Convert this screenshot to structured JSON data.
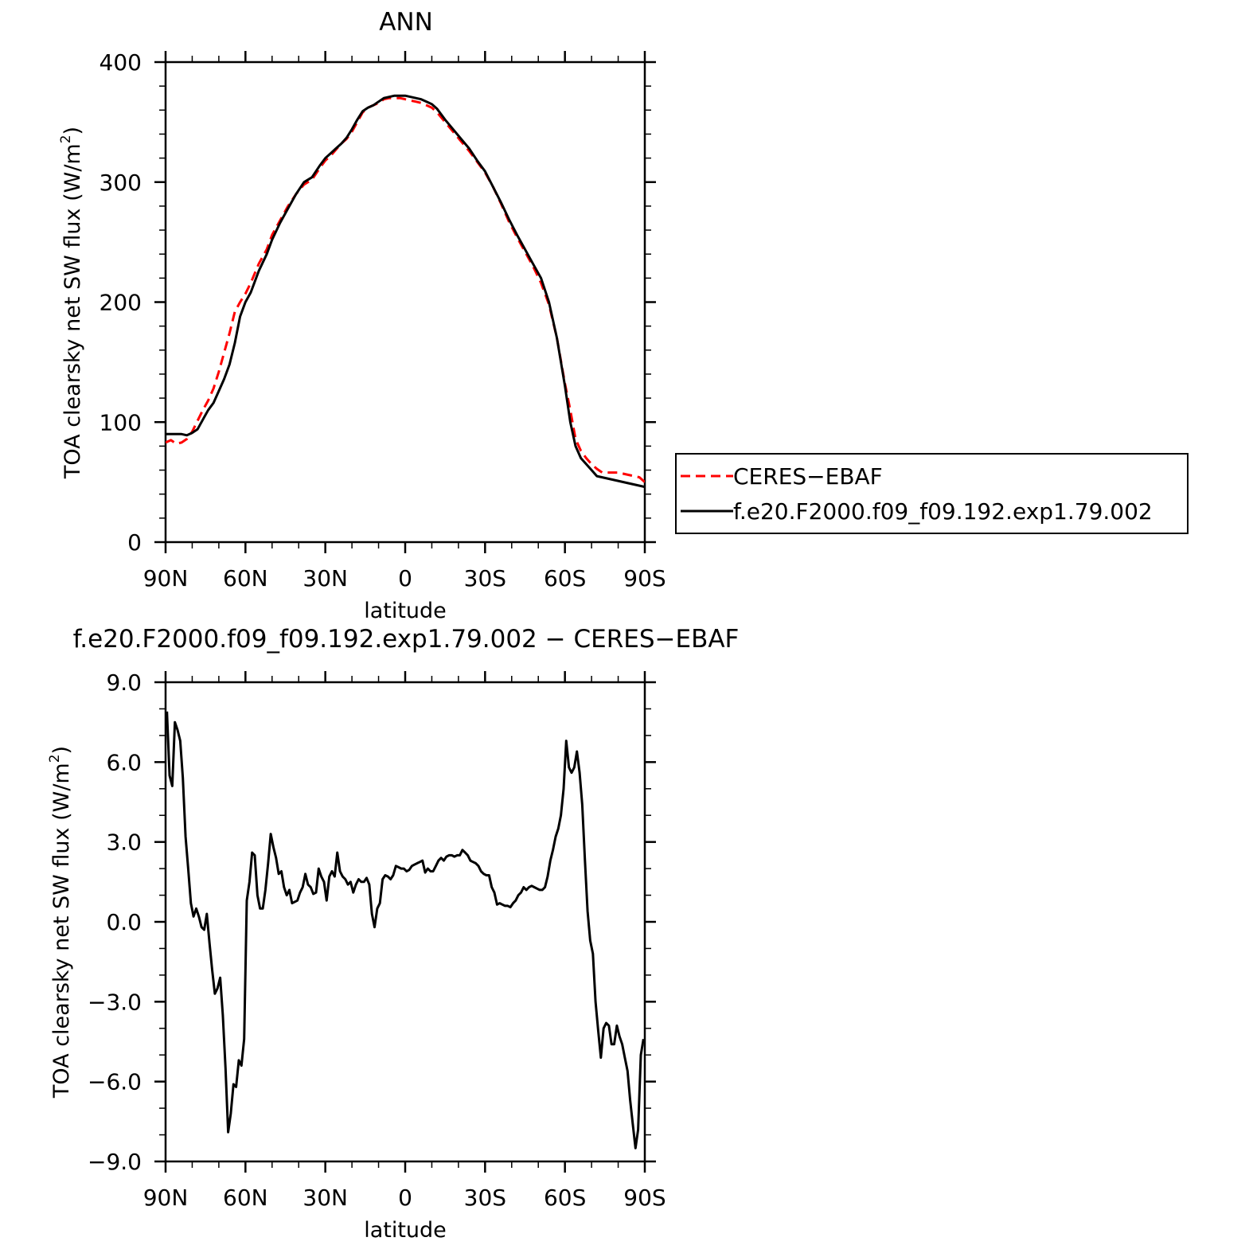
{
  "chart_data": [
    {
      "type": "line",
      "title": "ANN",
      "xlabel": "latitude",
      "ylabel": "TOA clearsky net SW flux (W/m²)",
      "ylabel_main": "TOA clearsky net SW flux (W/m",
      "ylabel_sup": "2",
      "ylabel_end": ")",
      "xlim": [
        90,
        -90
      ],
      "ylim": [
        0,
        400
      ],
      "x_ticks": [
        90,
        60,
        30,
        0,
        -30,
        -60,
        -90
      ],
      "x_tick_labels": [
        "90N",
        "60N",
        "30N",
        "0",
        "30S",
        "60S",
        "90S"
      ],
      "y_ticks": [
        0,
        100,
        200,
        300,
        400
      ],
      "y_tick_labels": [
        "0",
        "100",
        "200",
        "300",
        "400"
      ],
      "legend_position": "right of plot",
      "series": [
        {
          "name": "CERES-EBAF",
          "color": "#ff0000",
          "dash": "dashed",
          "x": [
            90,
            88,
            86,
            84,
            82,
            80,
            78,
            76,
            74,
            72,
            70,
            68,
            66,
            64,
            62,
            60,
            58,
            55,
            52,
            50,
            47,
            44,
            41,
            38,
            35,
            32,
            30,
            28,
            26,
            24,
            22,
            20,
            18,
            16,
            14,
            12,
            10,
            8,
            6,
            4,
            2,
            0,
            -2,
            -4,
            -6,
            -8,
            -10,
            -12,
            -15,
            -18,
            -21,
            -24,
            -27,
            -30,
            -33,
            -36,
            -39,
            -42,
            -45,
            -48,
            -51,
            -54,
            -57,
            -60,
            -62,
            -64,
            -66,
            -68,
            -70,
            -72,
            -74,
            -76,
            -78,
            -80,
            -82,
            -84,
            -86,
            -88,
            -90
          ],
          "y": [
            83,
            85,
            82,
            83,
            86,
            92,
            101,
            110,
            118,
            128,
            142,
            158,
            174,
            192,
            200,
            207,
            216,
            232,
            244,
            256,
            268,
            280,
            290,
            298,
            302,
            312,
            318,
            322,
            327,
            332,
            336,
            342,
            350,
            358,
            362,
            364,
            366,
            369,
            370,
            370,
            370,
            369,
            368,
            367,
            366,
            364,
            362,
            358,
            350,
            342,
            334,
            326,
            317,
            308,
            296,
            282,
            267,
            254,
            242,
            230,
            216,
            198,
            170,
            132,
            110,
            86,
            76,
            70,
            65,
            61,
            58,
            58,
            58,
            58,
            57,
            56,
            55,
            54,
            50
          ]
        },
        {
          "name": "f.e20.F2000.f09_f09.192.exp1.79.002",
          "color": "#000000",
          "dash": "solid",
          "x": [
            90,
            88,
            86,
            84,
            82,
            80,
            78,
            76,
            74,
            72,
            70,
            68,
            66,
            64,
            62,
            60,
            58,
            55,
            52,
            50,
            47,
            44,
            41,
            38,
            35,
            32,
            30,
            28,
            26,
            24,
            22,
            20,
            18,
            16,
            14,
            12,
            10,
            8,
            6,
            4,
            2,
            0,
            -2,
            -4,
            -6,
            -8,
            -10,
            -12,
            -15,
            -18,
            -21,
            -24,
            -27,
            -30,
            -33,
            -36,
            -39,
            -42,
            -45,
            -48,
            -51,
            -54,
            -57,
            -60,
            -62,
            -64,
            -66,
            -68,
            -70,
            -72,
            -74,
            -76,
            -78,
            -80,
            -82,
            -84,
            -86,
            -88,
            -90
          ],
          "y": [
            90,
            90,
            90,
            90,
            89,
            91,
            94,
            102,
            110,
            116,
            126,
            136,
            148,
            166,
            188,
            200,
            208,
            226,
            240,
            252,
            266,
            278,
            290,
            300,
            304,
            314,
            320,
            324,
            328,
            332,
            337,
            344,
            352,
            359,
            362,
            364,
            367,
            370,
            371,
            372,
            372,
            372,
            371,
            370,
            369,
            367,
            365,
            361,
            352,
            344,
            336,
            328,
            318,
            309,
            296,
            283,
            269,
            256,
            244,
            232,
            220,
            200,
            170,
            130,
            100,
            80,
            70,
            65,
            60,
            55,
            54,
            53,
            52,
            51,
            50,
            49,
            48,
            47,
            46
          ]
        }
      ]
    },
    {
      "type": "line",
      "title": "f.e20.F2000.f09_f09.192.exp1.79.002 - CERES-EBAF",
      "xlabel": "latitude",
      "ylabel": "TOA clearsky net SW flux (W/m²)",
      "ylabel_main": "TOA clearsky net SW flux (W/m",
      "ylabel_sup": "2",
      "ylabel_end": ")",
      "xlim": [
        90,
        -90
      ],
      "ylim": [
        -9,
        9
      ],
      "x_ticks": [
        90,
        60,
        30,
        0,
        -30,
        -60,
        -90
      ],
      "x_tick_labels": [
        "90N",
        "60N",
        "30N",
        "0",
        "30S",
        "60S",
        "90S"
      ],
      "y_ticks": [
        -9,
        -6,
        -3,
        0,
        3,
        6,
        9
      ],
      "y_tick_labels": [
        "-9.0",
        "-6.0",
        "-3.0",
        "0.0",
        "3.0",
        "6.0",
        "9.0"
      ],
      "series": [
        {
          "color": "#000000",
          "dash": "solid",
          "x": [
            89.5,
            88.5,
            87.5,
            86.5,
            85.5,
            84.5,
            83.5,
            82.5,
            81.5,
            80.5,
            79.5,
            78.5,
            77.5,
            76.5,
            75.5,
            74.5,
            73.5,
            72.5,
            71.5,
            70.5,
            69.5,
            68.5,
            67.5,
            66.5,
            65.5,
            64.5,
            63.5,
            62.5,
            61.5,
            60.5,
            59.5,
            58.5,
            57.5,
            56.5,
            55.5,
            54.5,
            53.5,
            52.5,
            51.5,
            50.5,
            49.5,
            48.5,
            47.5,
            46.5,
            45.5,
            44.5,
            43.5,
            42.5,
            41.5,
            40.5,
            39.5,
            38.5,
            37.5,
            36.5,
            35.5,
            34.5,
            33.5,
            32.5,
            31.5,
            30.5,
            29.5,
            28.5,
            27.5,
            26.5,
            25.5,
            24.5,
            23.5,
            22.5,
            21.5,
            20.5,
            19.5,
            18.5,
            17.5,
            16.5,
            15.5,
            14.5,
            13.5,
            12.5,
            11.5,
            10.5,
            9.5,
            8.5,
            7.5,
            6.5,
            5.5,
            4.5,
            3.5,
            2.5,
            1.5,
            0.5,
            -0.5,
            -1.5,
            -2.5,
            -3.5,
            -4.5,
            -5.5,
            -6.5,
            -7.5,
            -8.5,
            -9.5,
            -10.5,
            -11.5,
            -12.5,
            -13.5,
            -14.5,
            -15.5,
            -16.5,
            -17.5,
            -18.5,
            -19.5,
            -20.5,
            -21.5,
            -22.5,
            -23.5,
            -24.5,
            -25.5,
            -26.5,
            -27.5,
            -28.5,
            -29.5,
            -30.5,
            -31.5,
            -32.5,
            -33.5,
            -34.5,
            -35.5,
            -36.5,
            -37.5,
            -38.5,
            -39.5,
            -40.5,
            -41.5,
            -42.5,
            -43.5,
            -44.5,
            -45.5,
            -46.5,
            -47.5,
            -48.5,
            -49.5,
            -50.5,
            -51.5,
            -52.5,
            -53.5,
            -54.5,
            -55.5,
            -56.5,
            -57.5,
            -58.5,
            -59.5,
            -60.5,
            -61.5,
            -62.5,
            -63.5,
            -64.5,
            -65.5,
            -66.5,
            -67.5,
            -68.5,
            -69.5,
            -70.5,
            -71.5,
            -72.5,
            -73.5,
            -74.5,
            -75.5,
            -76.5,
            -77.5,
            -78.5,
            -79.5,
            -80.5,
            -81.5,
            -82.5,
            -83.5,
            -84.5,
            -85.5,
            -86.5,
            -87.5,
            -88.5,
            -89.5
          ],
          "y": [
            7.9,
            5.5,
            5.1,
            7.5,
            7.2,
            6.8,
            5.4,
            3.2,
            2.0,
            0.7,
            0.2,
            0.5,
            0.2,
            -0.2,
            -0.3,
            0.3,
            -0.8,
            -1.8,
            -2.7,
            -2.5,
            -2.1,
            -3.5,
            -5.5,
            -7.9,
            -7.2,
            -6.1,
            -6.2,
            -5.2,
            -5.4,
            -4.4,
            0.8,
            1.5,
            2.6,
            2.5,
            1.0,
            0.5,
            0.5,
            1.2,
            2.2,
            3.3,
            2.8,
            2.4,
            1.8,
            1.9,
            1.3,
            1.0,
            1.2,
            0.7,
            0.75,
            0.8,
            1.1,
            1.3,
            1.8,
            1.4,
            1.3,
            1.05,
            1.1,
            2.0,
            1.7,
            1.5,
            0.8,
            1.7,
            1.9,
            1.7,
            2.6,
            1.9,
            1.7,
            1.6,
            1.4,
            1.5,
            1.1,
            1.4,
            1.6,
            1.5,
            1.5,
            1.65,
            1.4,
            0.3,
            -0.2,
            0.5,
            0.7,
            1.6,
            1.75,
            1.7,
            1.6,
            1.75,
            2.1,
            2.05,
            2.0,
            2.0,
            1.9,
            1.95,
            2.1,
            2.15,
            2.2,
            2.25,
            2.3,
            1.85,
            2.0,
            1.9,
            1.9,
            2.1,
            2.3,
            2.4,
            2.3,
            2.45,
            2.5,
            2.5,
            2.45,
            2.5,
            2.5,
            2.7,
            2.6,
            2.5,
            2.3,
            2.25,
            2.2,
            2.1,
            1.9,
            1.8,
            1.75,
            1.75,
            1.3,
            1.1,
            0.65,
            0.7,
            0.65,
            0.6,
            0.6,
            0.55,
            0.7,
            0.8,
            1.0,
            1.1,
            1.3,
            1.2,
            1.3,
            1.35,
            1.3,
            1.25,
            1.2,
            1.2,
            1.3,
            1.7,
            2.3,
            2.7,
            3.2,
            3.5,
            4.0,
            5.0,
            6.8,
            5.8,
            5.6,
            5.8,
            6.4,
            5.6,
            4.4,
            2.3,
            0.4,
            -0.7,
            -1.2,
            -3.0,
            -4.1,
            -5.1,
            -4.0,
            -3.8,
            -3.9,
            -4.6,
            -4.6,
            -3.9,
            -4.3,
            -4.6,
            -5.1,
            -5.6,
            -6.7,
            -7.6,
            -8.5,
            -7.8,
            -5.0,
            -4.4
          ]
        }
      ]
    }
  ]
}
